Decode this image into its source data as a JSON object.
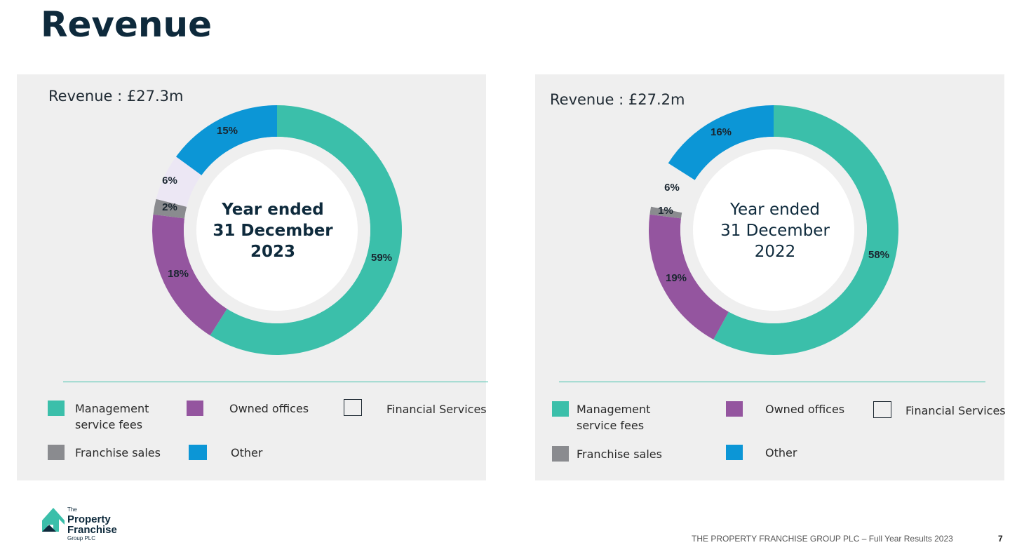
{
  "title": "Revenue",
  "colors": {
    "management": "#3bbfaa",
    "owned": "#94559f",
    "financial": "#ece7f4",
    "franchise": "#8a8b8f",
    "other": "#0c96d6",
    "accent_line": "#3dbfa8",
    "title": "#0e2a3c"
  },
  "legend": {
    "management": "Management service fees",
    "owned": "Owned offices",
    "financial": "Financial Services",
    "franchise": "Franchise sales",
    "other": "Other"
  },
  "chart_data": [
    {
      "type": "pie",
      "donut": true,
      "title": "Revenue : £27.3m",
      "center_text": [
        "Year ended",
        "31 December",
        "2023"
      ],
      "slices": [
        {
          "name": "Management service fees",
          "value": 59,
          "label": "59%"
        },
        {
          "name": "Owned offices",
          "value": 18,
          "label": "18%"
        },
        {
          "name": "Franchise sales",
          "value": 2,
          "label": "2%"
        },
        {
          "name": "Financial Services",
          "value": 6,
          "label": "6%"
        },
        {
          "name": "Other",
          "value": 15,
          "label": "15%"
        }
      ]
    },
    {
      "type": "pie",
      "donut": true,
      "title": "Revenue : £27.2m",
      "center_text": [
        "Year ended",
        "31 December",
        "2022"
      ],
      "slices": [
        {
          "name": "Management service fees",
          "value": 58,
          "label": "58%"
        },
        {
          "name": "Owned offices",
          "value": 19,
          "label": "19%"
        },
        {
          "name": "Franchise sales",
          "value": 1,
          "label": "1%"
        },
        {
          "name": "Financial Services",
          "value": 6,
          "label": "6%"
        },
        {
          "name": "Other",
          "value": 16,
          "label": "16%"
        }
      ]
    }
  ],
  "logo": {
    "line1": "The",
    "line2": "Property",
    "line3": "Franchise",
    "line4": "Group PLC"
  },
  "footer": {
    "text": "THE PROPERTY FRANCHISE GROUP PLC – Full Year Results 2023",
    "page": "7"
  }
}
